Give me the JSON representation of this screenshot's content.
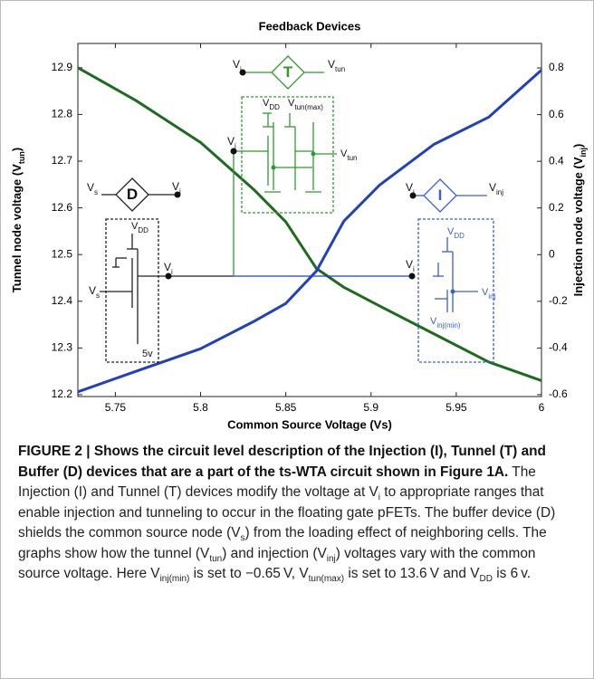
{
  "chart_data": {
    "type": "line",
    "title": "Feedback Devices",
    "xlabel": "Common Source Voltage (Vs)",
    "ylabel": [
      "Tunnel  node voltage (V",
      "tun",
      ")"
    ],
    "y2label": [
      "Injection  node voltage (V",
      "inj",
      ")"
    ],
    "x": [
      5.728,
      5.762,
      5.8,
      5.831,
      5.85,
      5.868,
      5.884,
      5.905,
      5.937,
      5.969,
      6
    ],
    "series": [
      {
        "color": "#1d6b1d",
        "axis": "y",
        "values": [
          12.9,
          12.83,
          12.74,
          12.64,
          12.57,
          12.47,
          12.43,
          12.39,
          12.33,
          12.27,
          12.23
        ]
      },
      {
        "color": "#1f40c0",
        "axis": "y2",
        "values": [
          -0.588,
          -0.5,
          -0.403,
          -0.287,
          -0.209,
          -0.07,
          0.143,
          0.298,
          0.473,
          0.589,
          0.791
        ]
      }
    ],
    "xlim": [
      5.728,
      6
    ],
    "xticks": [
      5.75,
      5.8,
      5.85,
      5.9,
      5.95,
      6
    ],
    "ylim": [
      12.196,
      12.952
    ],
    "yticks": [
      12.2,
      12.3,
      12.4,
      12.5,
      12.6,
      12.7,
      12.8,
      12.9
    ],
    "y2lim": [
      -0.608,
      0.905
    ],
    "y2ticks": [
      -0.6,
      -0.4,
      -0.2,
      0,
      0.2,
      0.4,
      0.6,
      0.8
    ],
    "annotations": [
      {
        "text": "V",
        "sub": "i"
      },
      {
        "text": "T"
      },
      {
        "text": "V",
        "sub": "tun"
      },
      {
        "text": "V",
        "sub": "DD"
      },
      {
        "text": "V",
        "sub": "tun(max)"
      },
      {
        "text": "V",
        "sub": "i"
      },
      {
        "text": "V",
        "sub": "tun"
      },
      {
        "text": "V",
        "sub": "s"
      },
      {
        "text": "D"
      },
      {
        "text": "V",
        "sub": "i"
      },
      {
        "text": "V",
        "sub": "DD"
      },
      {
        "text": "V",
        "sub": "i"
      },
      {
        "text": "V",
        "sub": "s"
      },
      {
        "text": "5v"
      },
      {
        "text": "V",
        "sub": "i"
      },
      {
        "text": "I"
      },
      {
        "text": "V",
        "sub": "inj"
      },
      {
        "text": "V",
        "sub": "DD"
      },
      {
        "text": "V",
        "sub": "i"
      },
      {
        "text": "V",
        "sub": "inj"
      },
      {
        "text": "V",
        "sub": "inj(min)"
      }
    ]
  },
  "caption": {
    "parts": [
      "FIGURE 2 | Shows the circuit level description of the Injection (I), Tunnel (T) and Buffer (D) devices that are a part of the ts-WTA circuit shown in Figure 1A.",
      " The Injection (I) and Tunnel (T) devices modify the voltage at V",
      "i",
      " to appropriate ranges that enable injection and tunneling to occur in the floating gate pFETs. The buffer device (D) shields the common source node (V",
      "s",
      ") from the loading effect of neighboring cells. The graphs show how the tunnel (V",
      "tun",
      ") and injection (V",
      "inj",
      ") voltages vary with the common source voltage. Here V",
      "inj(min)",
      " is set to −0.65 V, V",
      "tun(max)",
      " is set to 13.6 V and V",
      "DD",
      " is 6 v."
    ]
  }
}
